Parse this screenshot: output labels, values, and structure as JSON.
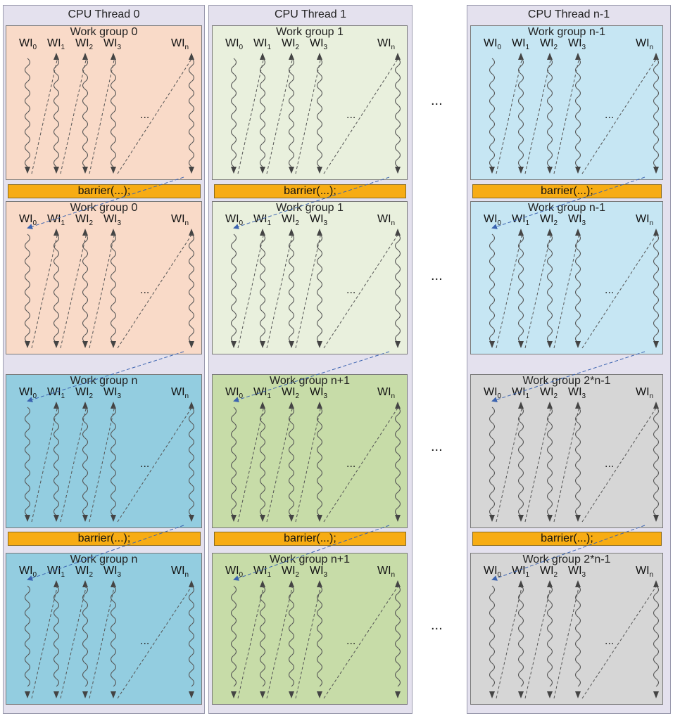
{
  "columns": [
    {
      "title": "CPU Thread 0",
      "groups": [
        {
          "title": "Work group 0",
          "color": "#f9dac8"
        },
        {
          "title": "Work group 0",
          "color": "#f9dac8"
        },
        {
          "title": "Work group n",
          "color": "#93cde0"
        },
        {
          "title": "Work group n",
          "color": "#93cde0"
        }
      ]
    },
    {
      "title": "CPU Thread 1",
      "groups": [
        {
          "title": "Work group 1",
          "color": "#e9f0dd"
        },
        {
          "title": "Work group 1",
          "color": "#e9f0dd"
        },
        {
          "title": "Work group n+1",
          "color": "#c7dca8"
        },
        {
          "title": "Work group n+1",
          "color": "#c7dca8"
        }
      ]
    },
    {
      "title": "CPU Thread n-1",
      "groups": [
        {
          "title": "Work group n-1",
          "color": "#c6e6f3"
        },
        {
          "title": "Work group n-1",
          "color": "#c6e6f3"
        },
        {
          "title": "Work group 2*n-1",
          "color": "#d6d6d6"
        },
        {
          "title": "Work group 2*n-1",
          "color": "#d6d6d6"
        }
      ]
    }
  ],
  "work_items": [
    {
      "base": "WI",
      "sub": "0"
    },
    {
      "base": "WI",
      "sub": "1"
    },
    {
      "base": "WI",
      "sub": "2"
    },
    {
      "base": "WI",
      "sub": "3"
    },
    {
      "base": "WI",
      "sub": "n"
    }
  ],
  "inner_ellipsis": "...",
  "between_columns_ellipsis": "...",
  "barrier_label": "barrier(...);",
  "colors": {
    "thread_bg": "#e4e1ee",
    "barrier": "#f7ac14",
    "wave": "#555555",
    "dashed": "#555555",
    "connector": "#3b63b0"
  }
}
